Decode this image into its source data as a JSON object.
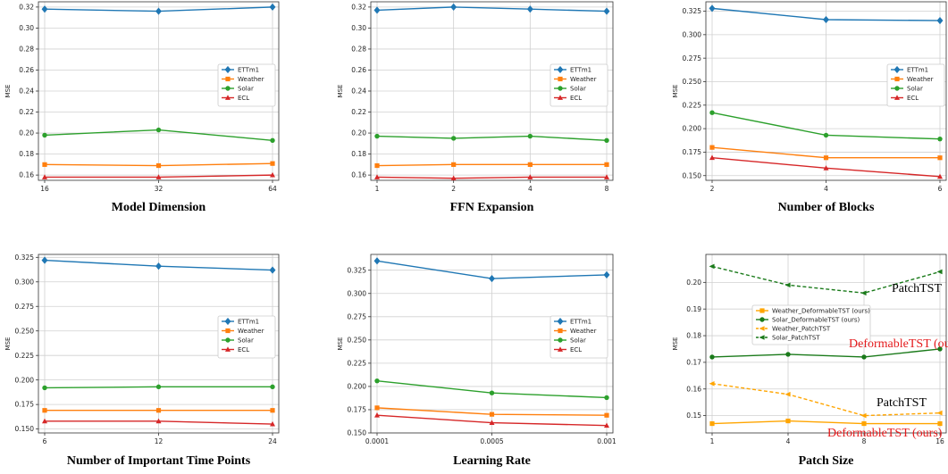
{
  "chart_data": [
    {
      "type": "line",
      "title": "",
      "xlabel": "Model Dimension",
      "ylabel": "MSE",
      "categories": [
        "16",
        "32",
        "64"
      ],
      "ylim": [
        0.155,
        0.325
      ],
      "yticks": [
        "0.16",
        "0.18",
        "0.20",
        "0.22",
        "0.24",
        "0.26",
        "0.28",
        "0.30",
        "0.32"
      ],
      "grid": true,
      "legend_position": "right-middle",
      "series": [
        {
          "name": "ETTm1",
          "values": [
            0.318,
            0.316,
            0.32
          ],
          "color": "#1f77b4",
          "marker": "diamond"
        },
        {
          "name": "Weather",
          "values": [
            0.17,
            0.169,
            0.171
          ],
          "color": "#ff7f0e",
          "marker": "square"
        },
        {
          "name": "Solar",
          "values": [
            0.198,
            0.203,
            0.193
          ],
          "color": "#2ca02c",
          "marker": "circle"
        },
        {
          "name": "ECL",
          "values": [
            0.158,
            0.158,
            0.16
          ],
          "color": "#d62728",
          "marker": "triangle"
        }
      ]
    },
    {
      "type": "line",
      "title": "",
      "xlabel": "FFN Expansion",
      "ylabel": "MSE",
      "categories": [
        "1",
        "2",
        "4",
        "8"
      ],
      "ylim": [
        0.155,
        0.325
      ],
      "yticks": [
        "0.16",
        "0.18",
        "0.20",
        "0.22",
        "0.24",
        "0.26",
        "0.28",
        "0.30",
        "0.32"
      ],
      "grid": true,
      "legend_position": "right-middle",
      "series": [
        {
          "name": "ETTm1",
          "values": [
            0.317,
            0.32,
            0.318,
            0.316
          ],
          "color": "#1f77b4",
          "marker": "diamond"
        },
        {
          "name": "Weather",
          "values": [
            0.169,
            0.17,
            0.17,
            0.17
          ],
          "color": "#ff7f0e",
          "marker": "square"
        },
        {
          "name": "Solar",
          "values": [
            0.197,
            0.195,
            0.197,
            0.193
          ],
          "color": "#2ca02c",
          "marker": "circle"
        },
        {
          "name": "ECL",
          "values": [
            0.158,
            0.157,
            0.158,
            0.158
          ],
          "color": "#d62728",
          "marker": "triangle"
        }
      ]
    },
    {
      "type": "line",
      "title": "",
      "xlabel": "Number of Blocks",
      "ylabel": "MSE",
      "categories": [
        "2",
        "4",
        "6"
      ],
      "ylim": [
        0.145,
        0.335
      ],
      "yticks": [
        "0.150",
        "0.175",
        "0.200",
        "0.225",
        "0.250",
        "0.275",
        "0.300",
        "0.325"
      ],
      "grid": true,
      "legend_position": "right-middle",
      "series": [
        {
          "name": "ETTm1",
          "values": [
            0.328,
            0.316,
            0.315
          ],
          "color": "#1f77b4",
          "marker": "diamond"
        },
        {
          "name": "Weather",
          "values": [
            0.18,
            0.169,
            0.169
          ],
          "color": "#ff7f0e",
          "marker": "square"
        },
        {
          "name": "Solar",
          "values": [
            0.217,
            0.193,
            0.189
          ],
          "color": "#2ca02c",
          "marker": "circle"
        },
        {
          "name": "ECL",
          "values": [
            0.169,
            0.158,
            0.149
          ],
          "color": "#d62728",
          "marker": "triangle"
        }
      ]
    },
    {
      "type": "line",
      "title": "",
      "xlabel": "Number of Important Time Points",
      "ylabel": "MSE",
      "categories": [
        "6",
        "12",
        "24"
      ],
      "ylim": [
        0.146,
        0.328
      ],
      "yticks": [
        "0.150",
        "0.175",
        "0.200",
        "0.225",
        "0.250",
        "0.275",
        "0.300",
        "0.325"
      ],
      "grid": true,
      "legend_position": "right-middle",
      "series": [
        {
          "name": "ETTm1",
          "values": [
            0.322,
            0.316,
            0.312
          ],
          "color": "#1f77b4",
          "marker": "diamond"
        },
        {
          "name": "Weather",
          "values": [
            0.169,
            0.169,
            0.169
          ],
          "color": "#ff7f0e",
          "marker": "square"
        },
        {
          "name": "Solar",
          "values": [
            0.192,
            0.193,
            0.193
          ],
          "color": "#2ca02c",
          "marker": "circle"
        },
        {
          "name": "ECL",
          "values": [
            0.158,
            0.158,
            0.155
          ],
          "color": "#d62728",
          "marker": "triangle"
        }
      ]
    },
    {
      "type": "line",
      "title": "",
      "xlabel": "Learning Rate",
      "ylabel": "MSE",
      "categories": [
        "0.0001",
        "0.0005",
        "0.001"
      ],
      "ylim": [
        0.15,
        0.342
      ],
      "yticks": [
        "0.150",
        "0.175",
        "0.200",
        "0.225",
        "0.250",
        "0.275",
        "0.300",
        "0.325"
      ],
      "grid": true,
      "legend_position": "right-middle",
      "series": [
        {
          "name": "ETTm1",
          "values": [
            0.335,
            0.316,
            0.32
          ],
          "color": "#1f77b4",
          "marker": "diamond"
        },
        {
          "name": "Weather",
          "values": [
            0.177,
            0.17,
            0.169
          ],
          "color": "#ff7f0e",
          "marker": "square"
        },
        {
          "name": "Solar",
          "values": [
            0.206,
            0.193,
            0.188
          ],
          "color": "#2ca02c",
          "marker": "circle"
        },
        {
          "name": "ECL",
          "values": [
            0.169,
            0.161,
            0.158
          ],
          "color": "#d62728",
          "marker": "triangle"
        }
      ]
    },
    {
      "type": "line",
      "title": "",
      "xlabel": "Patch Size",
      "ylabel": "MSE",
      "categories": [
        "1",
        "4",
        "8",
        "16"
      ],
      "ylim": [
        0.1435,
        0.2105
      ],
      "yticks": [
        "0.15",
        "0.16",
        "0.17",
        "0.18",
        "0.19",
        "0.20"
      ],
      "grid": true,
      "legend_position": "center-left",
      "series": [
        {
          "name": "Weather_DeformableTST (ours)",
          "values": [
            0.147,
            0.148,
            0.147,
            0.147
          ],
          "color": "#ffa500",
          "marker": "square",
          "dashed": false
        },
        {
          "name": "Solar_DeformableTST (ours)",
          "values": [
            0.172,
            0.173,
            0.172,
            0.175
          ],
          "color": "#1a7a1a",
          "marker": "circle",
          "dashed": false
        },
        {
          "name": "Weather_PatchTST",
          "values": [
            0.162,
            0.158,
            0.15,
            0.151
          ],
          "color": "#ffa500",
          "marker": "leftarrow",
          "dashed": true
        },
        {
          "name": "Solar_PatchTST",
          "values": [
            0.206,
            0.199,
            0.196,
            0.204
          ],
          "color": "#1a7a1a",
          "marker": "leftarrow",
          "dashed": true
        }
      ],
      "annotations": [
        {
          "text": "PatchTST",
          "color": "#000000",
          "near_series": 3
        },
        {
          "text": "DeformableTST (ours)",
          "color": "#e41a1c",
          "near_series": 1
        },
        {
          "text": "PatchTST",
          "color": "#000000",
          "near_series": 2
        },
        {
          "text": "DeformableTST (ours)",
          "color": "#e41a1c",
          "near_series": 0
        }
      ]
    }
  ]
}
